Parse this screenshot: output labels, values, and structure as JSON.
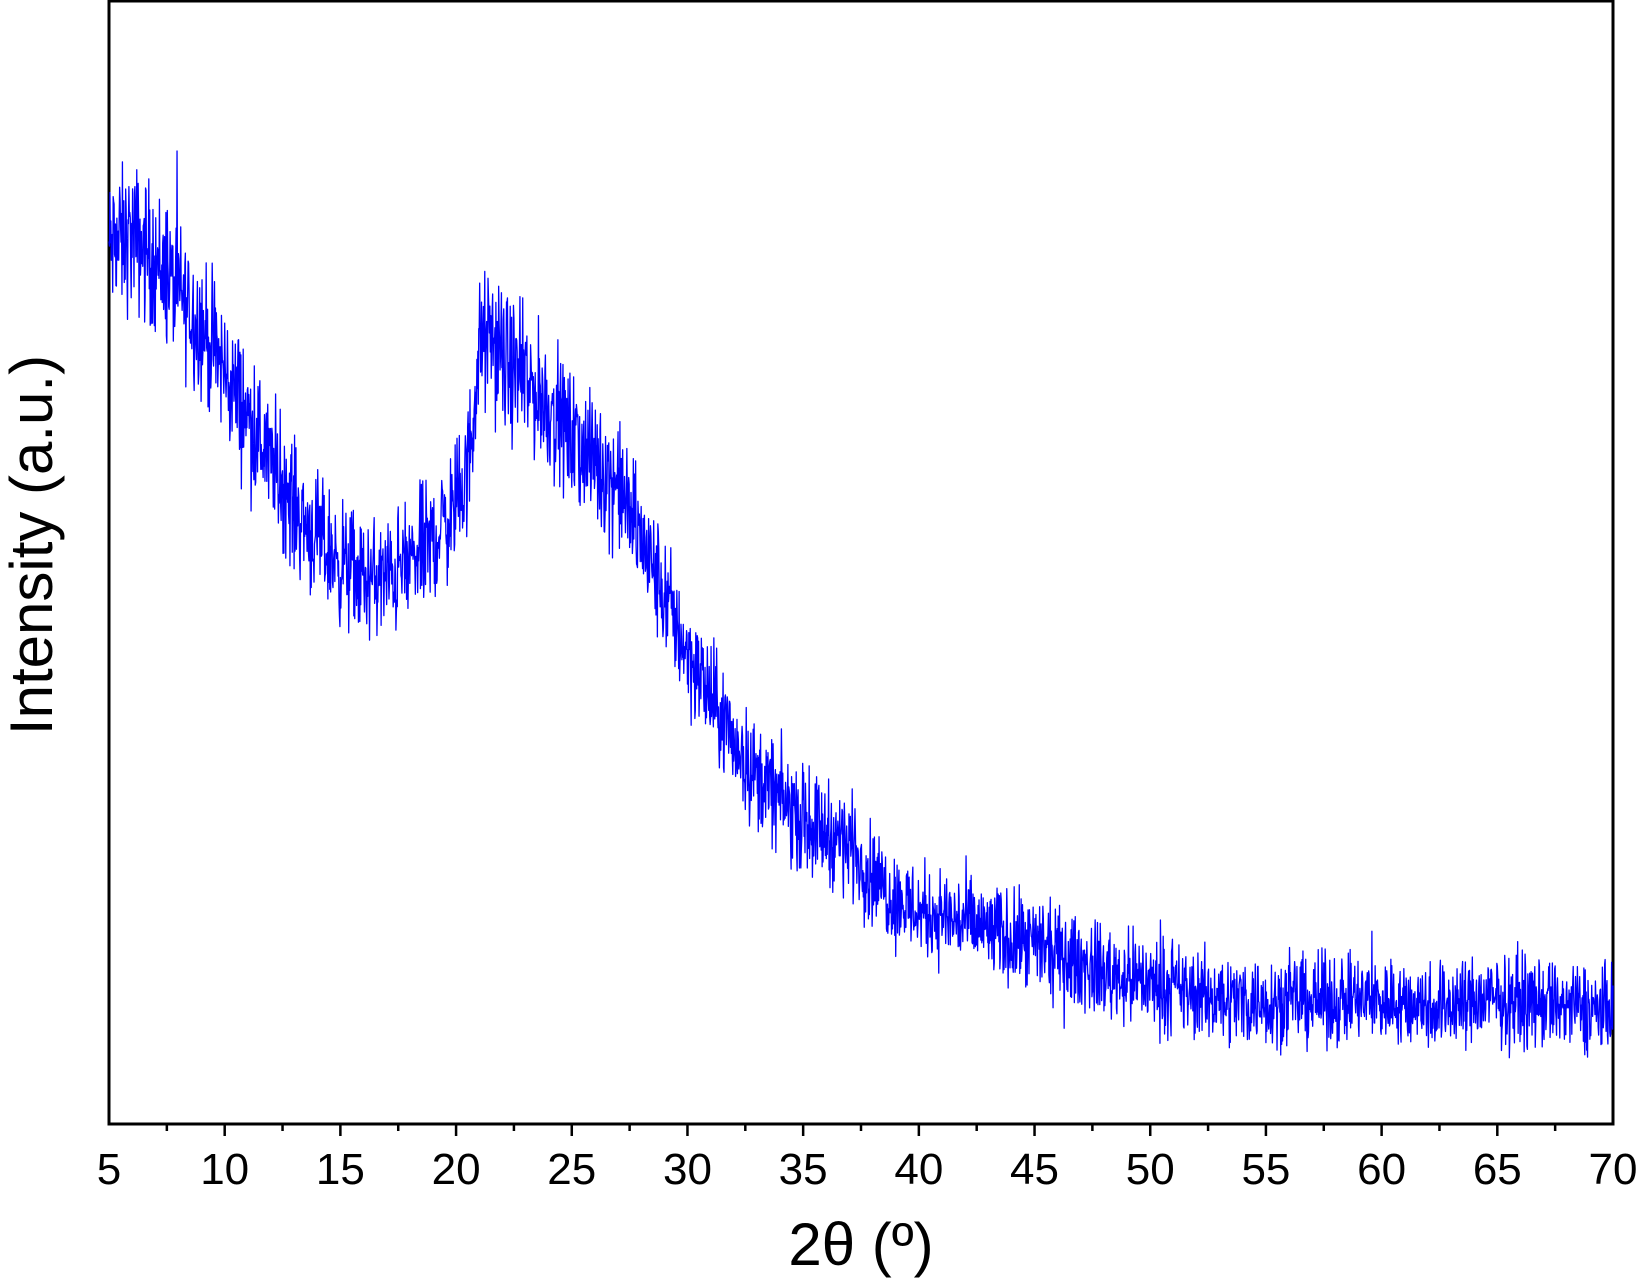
{
  "chart_data": {
    "type": "line",
    "title": "",
    "xlabel": "2θ (º)",
    "ylabel": "Intensity (a.u.)",
    "xlim": [
      5,
      70
    ],
    "ylim": [
      0,
      100
    ],
    "x_ticks": [
      5,
      10,
      15,
      20,
      25,
      30,
      35,
      40,
      45,
      50,
      55,
      60,
      65,
      70
    ],
    "x_tick_labels": [
      "5",
      "10",
      "15",
      "20",
      "25",
      "30",
      "35",
      "40",
      "45",
      "50",
      "55",
      "60",
      "65",
      "70"
    ],
    "x_minor_tick_step": 2.5,
    "y_ticks_shown": false,
    "grid": false,
    "legend": "none",
    "noise_amplitude": 3.2,
    "series": [
      {
        "color": "#0000ff",
        "x": [
          5,
          6,
          7,
          8,
          9,
          10,
          11,
          12,
          13,
          14,
          15,
          16,
          17,
          18,
          19,
          20,
          20.5,
          21,
          21.5,
          22,
          23,
          24,
          25,
          26,
          27,
          28,
          29,
          30,
          31,
          32,
          33,
          34,
          35,
          36,
          37,
          38,
          39,
          40,
          42,
          44,
          46,
          48,
          50,
          52,
          54,
          56,
          58,
          60,
          62,
          64,
          66,
          68,
          70
        ],
        "y": [
          78,
          79,
          77,
          74,
          71,
          67,
          63,
          59,
          55,
          52,
          50,
          48.5,
          48.5,
          50,
          52,
          55,
          58,
          69,
          70,
          68,
          66,
          64,
          61,
          59,
          57,
          52,
          47,
          42,
          38,
          34,
          31,
          29,
          27,
          26,
          25,
          22,
          20,
          19,
          18,
          16.5,
          15,
          13.5,
          12.5,
          11.5,
          11,
          11,
          11,
          11,
          10.5,
          11,
          11,
          10.5,
          10
        ]
      }
    ]
  }
}
